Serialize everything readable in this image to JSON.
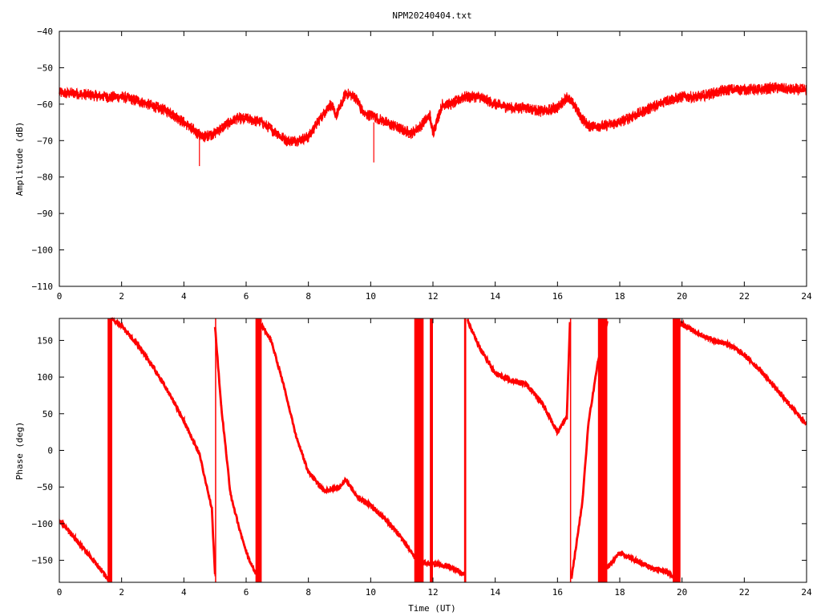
{
  "title": "NPM20240404.txt",
  "colors": {
    "series": "#ff0000",
    "axis": "#000000",
    "background": "#ffffff"
  },
  "chart_data": [
    {
      "type": "line",
      "title": "NPM20240404.txt",
      "xlabel": "",
      "ylabel": "Amplitude (dB)",
      "xlim": [
        0,
        24
      ],
      "ylim": [
        -110,
        -40
      ],
      "xticks": [
        0,
        2,
        4,
        6,
        8,
        10,
        12,
        14,
        16,
        18,
        20,
        22,
        24
      ],
      "yticks": [
        -110,
        -100,
        -90,
        -80,
        -70,
        -60,
        -50,
        -40
      ],
      "xtick_labels": [
        "0",
        "2",
        "4",
        "6",
        "8",
        "10",
        "12",
        "14",
        "16",
        "18",
        "20",
        "22",
        "24"
      ],
      "ytick_labels": [
        "−110",
        "−100",
        "−90",
        "−80",
        "−70",
        "−60",
        "−50",
        "−40"
      ],
      "grid": false,
      "series": [
        {
          "x": [
            0,
            0.5,
            1,
            1.5,
            2,
            2.5,
            3,
            3.5,
            4,
            4.3,
            4.6,
            5,
            5.3,
            5.7,
            6,
            6.5,
            7,
            7.3,
            7.6,
            8,
            8.3,
            8.7,
            8.9,
            9.2,
            9.5,
            9.8,
            10,
            10.5,
            11,
            11.3,
            11.6,
            11.9,
            12,
            12.3,
            12.6,
            13,
            13.5,
            14,
            14.5,
            15,
            15.5,
            16,
            16.3,
            16.5,
            16.8,
            17,
            17.5,
            18,
            18.5,
            19,
            19.5,
            20,
            20.5,
            21,
            21.5,
            22,
            22.5,
            23,
            23.5,
            24
          ],
          "y": [
            -57,
            -57,
            -57.5,
            -58,
            -58,
            -59,
            -60.5,
            -62,
            -65,
            -67,
            -69,
            -68,
            -66,
            -64,
            -64,
            -65,
            -68,
            -70,
            -70,
            -69,
            -65,
            -60,
            -63,
            -57,
            -58,
            -63,
            -63,
            -65,
            -67,
            -68,
            -66,
            -63,
            -68,
            -60,
            -60,
            -58,
            -58,
            -60,
            -61,
            -61,
            -62,
            -61,
            -58,
            -60,
            -64,
            -66,
            -66,
            -65,
            -63,
            -61,
            -59,
            -58,
            -58,
            -57,
            -56,
            -56,
            -56,
            -55.5,
            -56,
            -56
          ],
          "spikes": [
            {
              "x": 4.5,
              "y": -77
            },
            {
              "x": 10.1,
              "y": -76
            }
          ]
        }
      ]
    },
    {
      "type": "line",
      "title": "",
      "xlabel": "Time (UT)",
      "ylabel": "Phase (deg)",
      "xlim": [
        0,
        24
      ],
      "ylim": [
        -180,
        180
      ],
      "xticks": [
        0,
        2,
        4,
        6,
        8,
        10,
        12,
        14,
        16,
        18,
        20,
        22,
        24
      ],
      "yticks": [
        -150,
        -100,
        -50,
        0,
        50,
        100,
        150
      ],
      "xtick_labels": [
        "0",
        "2",
        "4",
        "6",
        "8",
        "10",
        "12",
        "14",
        "16",
        "18",
        "20",
        "22",
        "24"
      ],
      "ytick_labels": [
        "−150",
        "−100",
        "−50",
        "0",
        "50",
        "100",
        "150"
      ],
      "grid": false,
      "segments": [
        {
          "x": [
            0,
            0.5,
            1,
            1.6
          ],
          "y": [
            -95,
            -120,
            -145,
            -177
          ]
        },
        {
          "x": [
            1.65,
            2,
            2.5,
            3,
            3.5,
            4,
            4.5,
            4.9,
            5.0
          ],
          "y": [
            180,
            170,
            145,
            115,
            80,
            40,
            -5,
            -80,
            -170
          ]
        },
        {
          "x": [
            5.0,
            5.2,
            5.5,
            5.8,
            6.1,
            6.4
          ],
          "y": [
            170,
            60,
            -60,
            -110,
            -150,
            -175
          ]
        },
        {
          "x": [
            6.5,
            6.8,
            7.2,
            7.6,
            8,
            8.5,
            9,
            9.2,
            9.6,
            10,
            10.5,
            11,
            11.4,
            11.8,
            12.2,
            12.6,
            13
          ],
          "y": [
            170,
            150,
            90,
            20,
            -30,
            -55,
            -50,
            -40,
            -65,
            -75,
            -95,
            -120,
            -145,
            -155,
            -155,
            -160,
            -170
          ]
        },
        {
          "x": [
            13.1,
            13.5,
            14,
            14.5,
            15,
            15.5,
            16,
            16.3,
            16.4
          ],
          "y": [
            178,
            140,
            105,
            95,
            90,
            65,
            25,
            45,
            175
          ]
        },
        {
          "x": [
            16.45,
            16.8,
            17,
            17.3,
            17.6
          ],
          "y": [
            -175,
            -70,
            40,
            120,
            175
          ]
        },
        {
          "x": [
            17.6,
            18,
            18.5,
            19,
            19.5,
            19.8
          ],
          "y": [
            -160,
            -140,
            -150,
            -160,
            -165,
            -175
          ]
        },
        {
          "x": [
            19.9,
            20.5,
            21,
            21.5,
            22,
            22.5,
            23,
            23.5,
            24
          ],
          "y": [
            175,
            160,
            150,
            145,
            130,
            110,
            85,
            60,
            35
          ]
        }
      ],
      "wrap_bands": [
        {
          "from": 1.55,
          "to": 1.7
        },
        {
          "from": 6.3,
          "to": 6.5
        },
        {
          "from": 11.4,
          "to": 11.7
        },
        {
          "from": 11.9,
          "to": 12.0
        },
        {
          "from": 13.0,
          "to": 13.05
        },
        {
          "from": 17.3,
          "to": 17.6
        },
        {
          "from": 19.7,
          "to": 19.95
        }
      ]
    }
  ]
}
